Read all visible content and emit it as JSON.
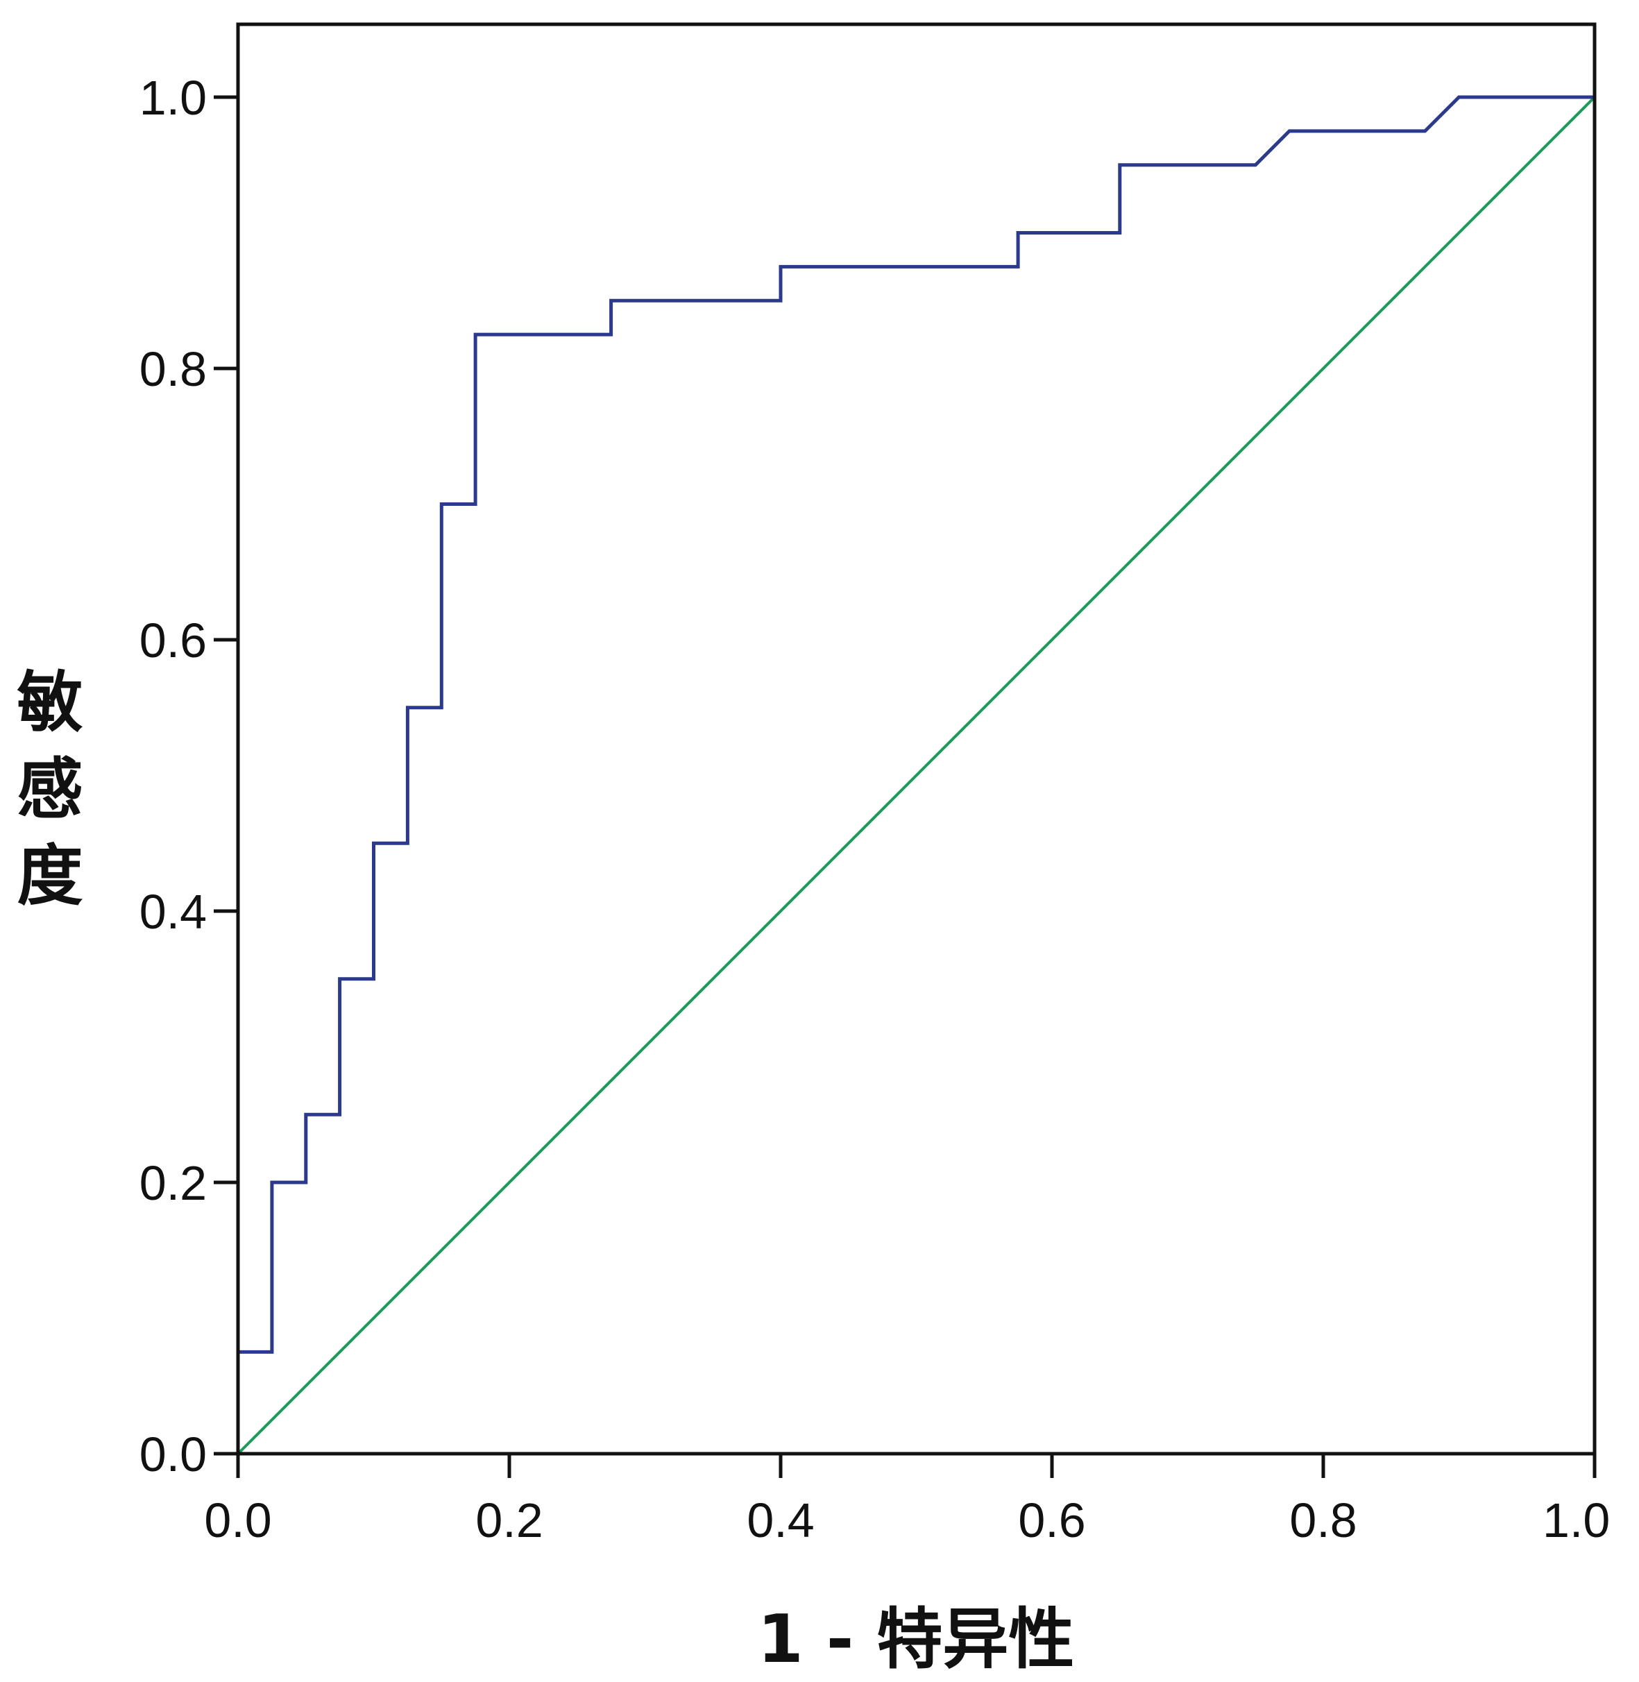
{
  "chart_data": {
    "type": "line",
    "title": "",
    "xlabel": "1 - 特异性",
    "ylabel": "敏感度",
    "xlim": [
      0,
      1
    ],
    "ylim": [
      0,
      1
    ],
    "grid": false,
    "x_ticks": [
      0.0,
      0.2,
      0.4,
      0.6,
      0.8,
      1.0
    ],
    "y_ticks": [
      0.0,
      0.2,
      0.4,
      0.6,
      0.8,
      1.0
    ],
    "x_tick_labels": [
      "0.0",
      "0.2",
      "0.4",
      "0.6",
      "0.8",
      "1.0"
    ],
    "y_tick_labels": [
      "0.0",
      "0.2",
      "0.4",
      "0.6",
      "0.8",
      "1.0"
    ],
    "series": [
      {
        "color": "#2b3a8c",
        "points": [
          [
            0.0,
            0.0
          ],
          [
            0.0,
            0.075
          ],
          [
            0.025,
            0.075
          ],
          [
            0.025,
            0.2
          ],
          [
            0.05,
            0.2
          ],
          [
            0.05,
            0.25
          ],
          [
            0.075,
            0.25
          ],
          [
            0.075,
            0.35
          ],
          [
            0.1,
            0.35
          ],
          [
            0.1,
            0.45
          ],
          [
            0.125,
            0.45
          ],
          [
            0.125,
            0.55
          ],
          [
            0.15,
            0.55
          ],
          [
            0.15,
            0.7
          ],
          [
            0.175,
            0.7
          ],
          [
            0.175,
            0.825
          ],
          [
            0.275,
            0.825
          ],
          [
            0.275,
            0.85
          ],
          [
            0.4,
            0.85
          ],
          [
            0.4,
            0.875
          ],
          [
            0.575,
            0.875
          ],
          [
            0.575,
            0.9
          ],
          [
            0.65,
            0.9
          ],
          [
            0.65,
            0.95
          ],
          [
            0.75,
            0.95
          ],
          [
            0.775,
            0.975
          ],
          [
            0.875,
            0.975
          ],
          [
            0.9,
            1.0
          ],
          [
            1.0,
            1.0
          ]
        ]
      },
      {
        "color": "#1e9a5a",
        "points": [
          [
            0.0,
            0.0
          ],
          [
            1.0,
            1.0
          ]
        ]
      }
    ]
  }
}
